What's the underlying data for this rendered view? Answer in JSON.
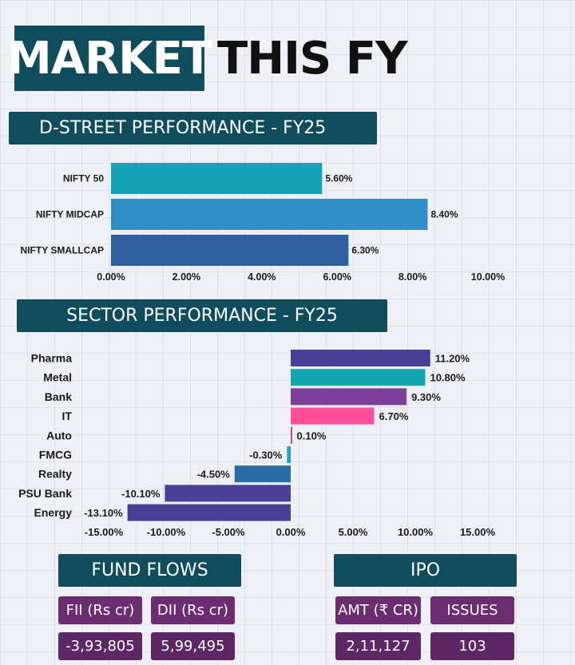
{
  "header": {
    "title_highlight": "MARKET",
    "title_rest": "THIS FY"
  },
  "colors": {
    "dark_teal": "#0f4c5c",
    "nifty50": "#17a2b8",
    "midcap": "#2e8ec5",
    "smallcap": "#2e5f9e",
    "pharma": "#4a3f96",
    "metal": "#13a6b1",
    "bank": "#7d3f9b",
    "it": "#ff4f9a",
    "auto": "#c04a8c",
    "fmcg": "#2d9cc9",
    "realty": "#2b6ca6",
    "psu_bank": "#4a3f96",
    "energy": "#4a3f96",
    "pill_purple": "#6b2d6f"
  },
  "chart_data": [
    {
      "type": "bar",
      "orientation": "horizontal",
      "title": "D-STREET PERFORMANCE - FY25",
      "categories": [
        "NIFTY 50",
        "NIFTY MIDCAP",
        "NIFTY SMALLCAP"
      ],
      "values": [
        5.6,
        8.4,
        6.3
      ],
      "value_labels": [
        "5.60%",
        "8.40%",
        "6.30%"
      ],
      "xlim": [
        0,
        10
      ],
      "xticks": [
        0,
        2,
        4,
        6,
        8,
        10
      ],
      "xtick_labels": [
        "0.00%",
        "2.00%",
        "4.00%",
        "6.00%",
        "8.00%",
        "10.00%"
      ],
      "grid": false
    },
    {
      "type": "bar",
      "orientation": "horizontal",
      "title": "SECTOR PERFORMANCE - FY25",
      "categories": [
        "Pharma",
        "Metal",
        "Bank",
        "IT",
        "Auto",
        "FMCG",
        "Realty",
        "PSU Bank",
        "Energy"
      ],
      "values": [
        11.2,
        10.8,
        9.3,
        6.7,
        0.1,
        -0.3,
        -4.5,
        -10.1,
        -13.1
      ],
      "value_labels": [
        "11.20%",
        "10.80%",
        "9.30%",
        "6.70%",
        "0.10%",
        "-0.30%",
        "-4.50%",
        "-10.10%",
        "-13.10%"
      ],
      "xlim": [
        -15,
        15
      ],
      "xticks": [
        -15,
        -10,
        -5,
        0,
        5,
        10,
        15
      ],
      "xtick_labels": [
        "-15.00%",
        "-10.00%",
        "-5.00%",
        "0.00%",
        "5.00%",
        "10.00%",
        "15.00%"
      ],
      "grid": false
    }
  ],
  "fund_flows": {
    "title": "FUND FLOWS",
    "fii_label": "FII (Rs cr)",
    "dii_label": "DII (Rs cr)",
    "fii_value": "-3,93,805",
    "dii_value": "5,99,495"
  },
  "ipo": {
    "title": "IPO",
    "amt_label": "AMT (₹ CR)",
    "issues_label": "ISSUES",
    "amt_value": "2,11,127",
    "issues_value": "103"
  }
}
